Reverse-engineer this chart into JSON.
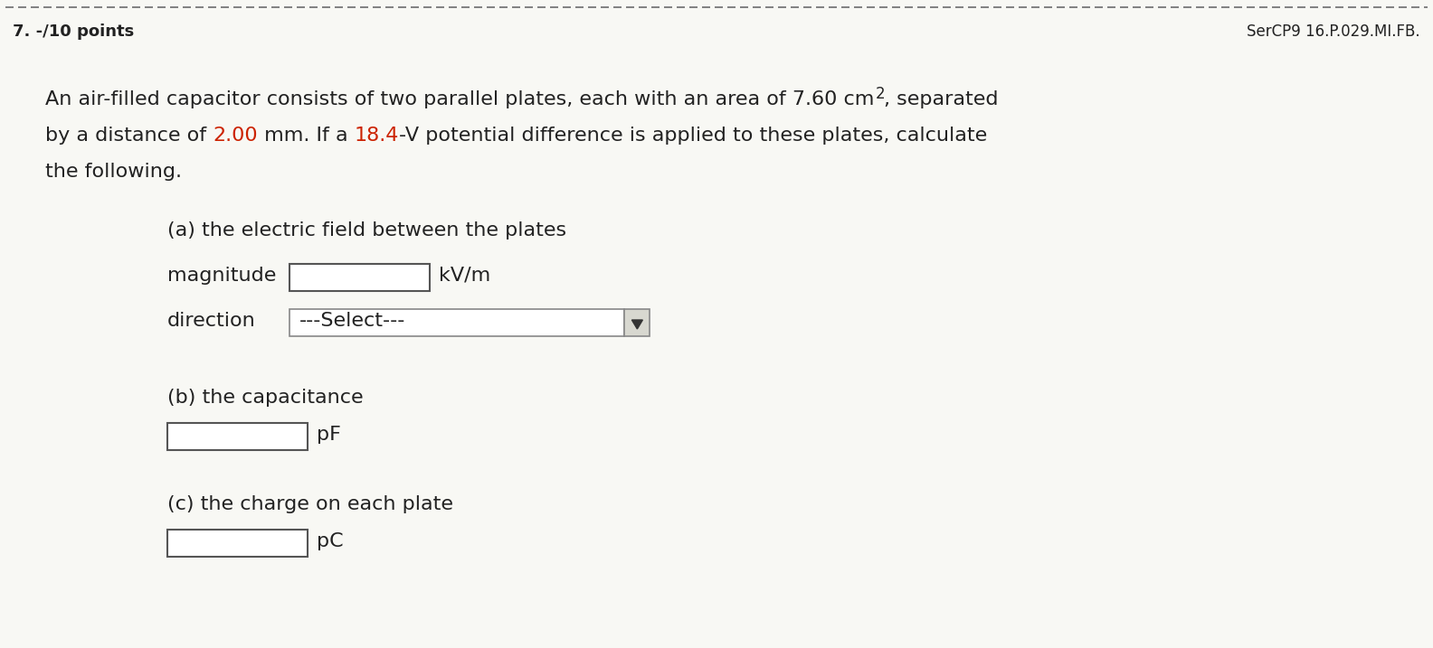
{
  "background_color": "#f8f8f4",
  "dashed_line_color": "#777777",
  "header_left": "7. -/10 points",
  "header_right": "SerCP9 16.P.029.MI.FB.",
  "text_color": "#222222",
  "red_color": "#cc2200",
  "header_fontsize": 13,
  "body_fontsize": 16,
  "small_fontsize": 12,
  "line1_normal": "An air-filled capacitor consists of two parallel plates, each with an area of 7.60 cm",
  "line1_sup": "2",
  "line1_end": ", separated",
  "line2_pre": "by a distance of ",
  "line2_red1": "2.00",
  "line2_mid": " mm. If a ",
  "line2_red2": "18.4",
  "line2_end": "-V potential difference is applied to these plates, calculate",
  "line3": "the following.",
  "part_a": "(a) the electric field between the plates",
  "magnitude_label": "magnitude",
  "magnitude_unit": "kV/m",
  "direction_label": "direction",
  "direction_placeholder": "---Select---",
  "part_b": "(b) the capacitance",
  "part_b_unit": "pF",
  "part_c": "(c) the charge on each plate",
  "part_c_unit": "pC"
}
